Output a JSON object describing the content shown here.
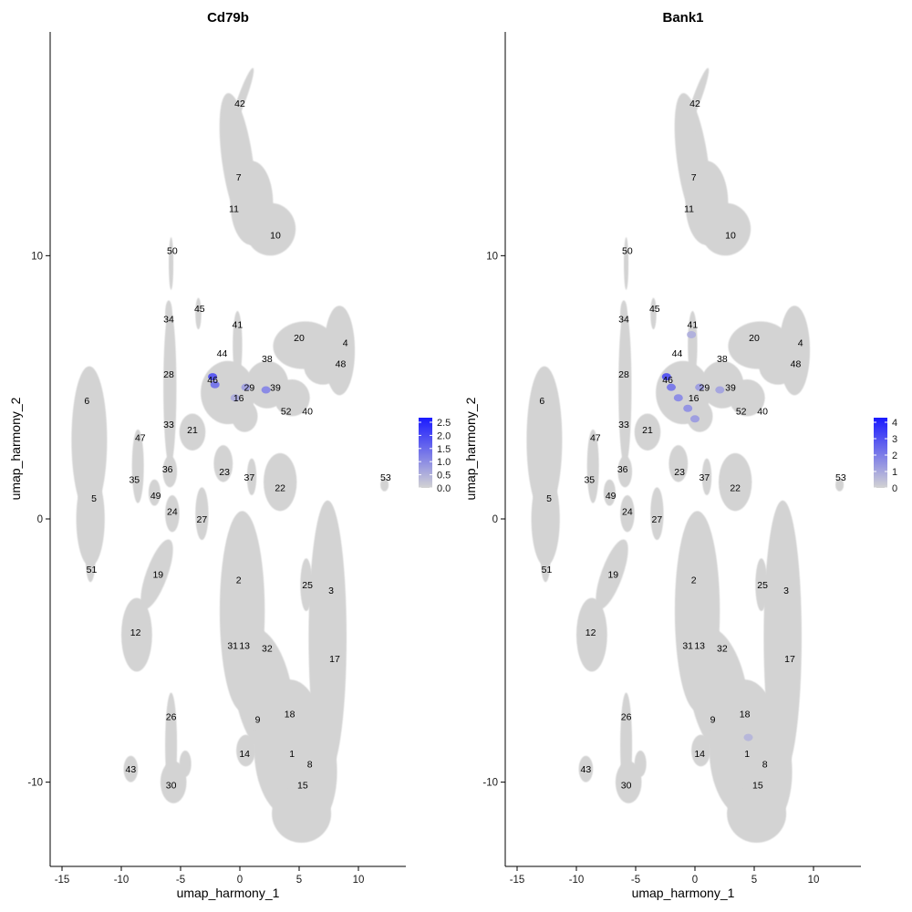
{
  "chart_data": [
    {
      "type": "scatter",
      "title": "Cd79b",
      "xlabel": "umap_harmony_1",
      "ylabel": "umap_harmony_2",
      "xlim": [
        -16,
        14
      ],
      "ylim": [
        -13.2,
        18.5
      ],
      "xticks": [
        "-15",
        "-10",
        "-5",
        "0",
        "5",
        "10"
      ],
      "yticks": [
        "-10",
        "0",
        "10"
      ],
      "legend": {
        "placement": "right",
        "colors": [
          "#d3d3d3",
          "#1a1aff"
        ],
        "values": [
          "2.5",
          "2.0",
          "1.5",
          "1.0",
          "0.5",
          "0.0"
        ],
        "max": 2.6
      },
      "clusters": [
        {
          "label": "42",
          "x": 0.0,
          "y": 15.8
        },
        {
          "label": "7",
          "x": -0.1,
          "y": 13.0
        },
        {
          "label": "11",
          "x": -0.5,
          "y": 11.8
        },
        {
          "label": "10",
          "x": 3.0,
          "y": 10.8
        },
        {
          "label": "50",
          "x": -5.7,
          "y": 10.2
        },
        {
          "label": "45",
          "x": -3.4,
          "y": 8.0
        },
        {
          "label": "34",
          "x": -6.0,
          "y": 7.6
        },
        {
          "label": "41",
          "x": -0.2,
          "y": 7.4
        },
        {
          "label": "20",
          "x": 5.0,
          "y": 6.9
        },
        {
          "label": "4",
          "x": 8.9,
          "y": 6.7
        },
        {
          "label": "44",
          "x": -1.5,
          "y": 6.3
        },
        {
          "label": "38",
          "x": 2.3,
          "y": 6.1
        },
        {
          "label": "48",
          "x": 8.5,
          "y": 5.9
        },
        {
          "label": "28",
          "x": -6.0,
          "y": 5.5
        },
        {
          "label": "46",
          "x": -2.3,
          "y": 5.3
        },
        {
          "label": "29",
          "x": 0.8,
          "y": 5.0
        },
        {
          "label": "39",
          "x": 3.0,
          "y": 5.0
        },
        {
          "label": "16",
          "x": -0.1,
          "y": 4.6
        },
        {
          "label": "6",
          "x": -12.9,
          "y": 4.5
        },
        {
          "label": "52",
          "x": 3.9,
          "y": 4.1
        },
        {
          "label": "40",
          "x": 5.7,
          "y": 4.1
        },
        {
          "label": "33",
          "x": -6.0,
          "y": 3.6
        },
        {
          "label": "21",
          "x": -4.0,
          "y": 3.4
        },
        {
          "label": "47",
          "x": -8.4,
          "y": 3.1
        },
        {
          "label": "23",
          "x": -1.3,
          "y": 1.8
        },
        {
          "label": "36",
          "x": -6.1,
          "y": 1.9
        },
        {
          "label": "37",
          "x": 0.8,
          "y": 1.6
        },
        {
          "label": "35",
          "x": -8.9,
          "y": 1.5
        },
        {
          "label": "53",
          "x": 12.3,
          "y": 1.6
        },
        {
          "label": "22",
          "x": 3.4,
          "y": 1.2
        },
        {
          "label": "5",
          "x": -12.3,
          "y": 0.8
        },
        {
          "label": "49",
          "x": -7.1,
          "y": 0.9
        },
        {
          "label": "24",
          "x": -5.7,
          "y": 0.3
        },
        {
          "label": "27",
          "x": -3.2,
          "y": 0.0
        },
        {
          "label": "51",
          "x": -12.5,
          "y": -1.9
        },
        {
          "label": "19",
          "x": -6.9,
          "y": -2.1
        },
        {
          "label": "2",
          "x": -0.1,
          "y": -2.3
        },
        {
          "label": "25",
          "x": 5.7,
          "y": -2.5
        },
        {
          "label": "3",
          "x": 7.7,
          "y": -2.7
        },
        {
          "label": "12",
          "x": -8.8,
          "y": -4.3
        },
        {
          "label": "31",
          "x": -0.6,
          "y": -4.8
        },
        {
          "label": "13",
          "x": 0.4,
          "y": -4.8
        },
        {
          "label": "32",
          "x": 2.3,
          "y": -4.9
        },
        {
          "label": "17",
          "x": 8.0,
          "y": -5.3
        },
        {
          "label": "26",
          "x": -5.8,
          "y": -7.5
        },
        {
          "label": "18",
          "x": 4.2,
          "y": -7.4
        },
        {
          "label": "9",
          "x": 1.5,
          "y": -7.6
        },
        {
          "label": "14",
          "x": 0.4,
          "y": -8.9
        },
        {
          "label": "1",
          "x": 4.4,
          "y": -8.9
        },
        {
          "label": "8",
          "x": 5.9,
          "y": -9.3
        },
        {
          "label": "43",
          "x": -9.2,
          "y": -9.5
        },
        {
          "label": "30",
          "x": -5.8,
          "y": -10.1
        },
        {
          "label": "15",
          "x": 5.3,
          "y": -10.1
        }
      ],
      "highlights": [
        {
          "x": -2.3,
          "y": 5.4,
          "value": 2.0
        },
        {
          "x": -2.1,
          "y": 5.1,
          "value": 1.5
        },
        {
          "x": 2.2,
          "y": 4.9,
          "value": 1.2
        },
        {
          "x": 0.5,
          "y": 5.0,
          "value": 0.8
        },
        {
          "x": -0.4,
          "y": 4.6,
          "value": 0.6
        }
      ]
    },
    {
      "type": "scatter",
      "title": "Bank1",
      "xlabel": "umap_harmony_1",
      "ylabel": "umap_harmony_2",
      "xlim": [
        -16,
        14
      ],
      "ylim": [
        -13.2,
        18.5
      ],
      "xticks": [
        "-15",
        "-10",
        "-5",
        "0",
        "5",
        "10"
      ],
      "yticks": [
        "-10",
        "0",
        "10"
      ],
      "legend": {
        "placement": "right",
        "colors": [
          "#d3d3d3",
          "#1a1aff"
        ],
        "values": [
          "4",
          "3",
          "2",
          "1",
          "0"
        ],
        "max": 4.5
      },
      "clusters": [
        {
          "label": "42",
          "x": 0.0,
          "y": 15.8
        },
        {
          "label": "7",
          "x": -0.1,
          "y": 13.0
        },
        {
          "label": "11",
          "x": -0.5,
          "y": 11.8
        },
        {
          "label": "10",
          "x": 3.0,
          "y": 10.8
        },
        {
          "label": "50",
          "x": -5.7,
          "y": 10.2
        },
        {
          "label": "45",
          "x": -3.4,
          "y": 8.0
        },
        {
          "label": "34",
          "x": -6.0,
          "y": 7.6
        },
        {
          "label": "41",
          "x": -0.2,
          "y": 7.4
        },
        {
          "label": "20",
          "x": 5.0,
          "y": 6.9
        },
        {
          "label": "4",
          "x": 8.9,
          "y": 6.7
        },
        {
          "label": "44",
          "x": -1.5,
          "y": 6.3
        },
        {
          "label": "38",
          "x": 2.3,
          "y": 6.1
        },
        {
          "label": "48",
          "x": 8.5,
          "y": 5.9
        },
        {
          "label": "28",
          "x": -6.0,
          "y": 5.5
        },
        {
          "label": "46",
          "x": -2.3,
          "y": 5.3
        },
        {
          "label": "29",
          "x": 0.8,
          "y": 5.0
        },
        {
          "label": "39",
          "x": 3.0,
          "y": 5.0
        },
        {
          "label": "16",
          "x": -0.1,
          "y": 4.6
        },
        {
          "label": "6",
          "x": -12.9,
          "y": 4.5
        },
        {
          "label": "52",
          "x": 3.9,
          "y": 4.1
        },
        {
          "label": "40",
          "x": 5.7,
          "y": 4.1
        },
        {
          "label": "33",
          "x": -6.0,
          "y": 3.6
        },
        {
          "label": "21",
          "x": -4.0,
          "y": 3.4
        },
        {
          "label": "47",
          "x": -8.4,
          "y": 3.1
        },
        {
          "label": "23",
          "x": -1.3,
          "y": 1.8
        },
        {
          "label": "36",
          "x": -6.1,
          "y": 1.9
        },
        {
          "label": "37",
          "x": 0.8,
          "y": 1.6
        },
        {
          "label": "35",
          "x": -8.9,
          "y": 1.5
        },
        {
          "label": "53",
          "x": 12.3,
          "y": 1.6
        },
        {
          "label": "22",
          "x": 3.4,
          "y": 1.2
        },
        {
          "label": "5",
          "x": -12.3,
          "y": 0.8
        },
        {
          "label": "49",
          "x": -7.1,
          "y": 0.9
        },
        {
          "label": "24",
          "x": -5.7,
          "y": 0.3
        },
        {
          "label": "27",
          "x": -3.2,
          "y": 0.0
        },
        {
          "label": "51",
          "x": -12.5,
          "y": -1.9
        },
        {
          "label": "19",
          "x": -6.9,
          "y": -2.1
        },
        {
          "label": "2",
          "x": -0.1,
          "y": -2.3
        },
        {
          "label": "25",
          "x": 5.7,
          "y": -2.5
        },
        {
          "label": "3",
          "x": 7.7,
          "y": -2.7
        },
        {
          "label": "12",
          "x": -8.8,
          "y": -4.3
        },
        {
          "label": "31",
          "x": -0.6,
          "y": -4.8
        },
        {
          "label": "13",
          "x": 0.4,
          "y": -4.8
        },
        {
          "label": "32",
          "x": 2.3,
          "y": -4.9
        },
        {
          "label": "17",
          "x": 8.0,
          "y": -5.3
        },
        {
          "label": "26",
          "x": -5.8,
          "y": -7.5
        },
        {
          "label": "18",
          "x": 4.2,
          "y": -7.4
        },
        {
          "label": "9",
          "x": 1.5,
          "y": -7.6
        },
        {
          "label": "14",
          "x": 0.4,
          "y": -8.9
        },
        {
          "label": "1",
          "x": 4.4,
          "y": -8.9
        },
        {
          "label": "8",
          "x": 5.9,
          "y": -9.3
        },
        {
          "label": "43",
          "x": -9.2,
          "y": -9.5
        },
        {
          "label": "30",
          "x": -5.8,
          "y": -10.1
        },
        {
          "label": "15",
          "x": 5.3,
          "y": -10.1
        }
      ],
      "highlights": [
        {
          "x": -2.4,
          "y": 5.4,
          "value": 3.5
        },
        {
          "x": -2.0,
          "y": 5.0,
          "value": 2.5
        },
        {
          "x": -1.4,
          "y": 4.6,
          "value": 2.0
        },
        {
          "x": -0.6,
          "y": 4.2,
          "value": 1.8
        },
        {
          "x": 0.0,
          "y": 3.8,
          "value": 1.5
        },
        {
          "x": 0.4,
          "y": 5.0,
          "value": 1.5
        },
        {
          "x": 2.1,
          "y": 4.9,
          "value": 1.3
        },
        {
          "x": -0.3,
          "y": 7.0,
          "value": 1.0
        },
        {
          "x": 4.5,
          "y": -8.3,
          "value": 0.8
        }
      ]
    }
  ]
}
